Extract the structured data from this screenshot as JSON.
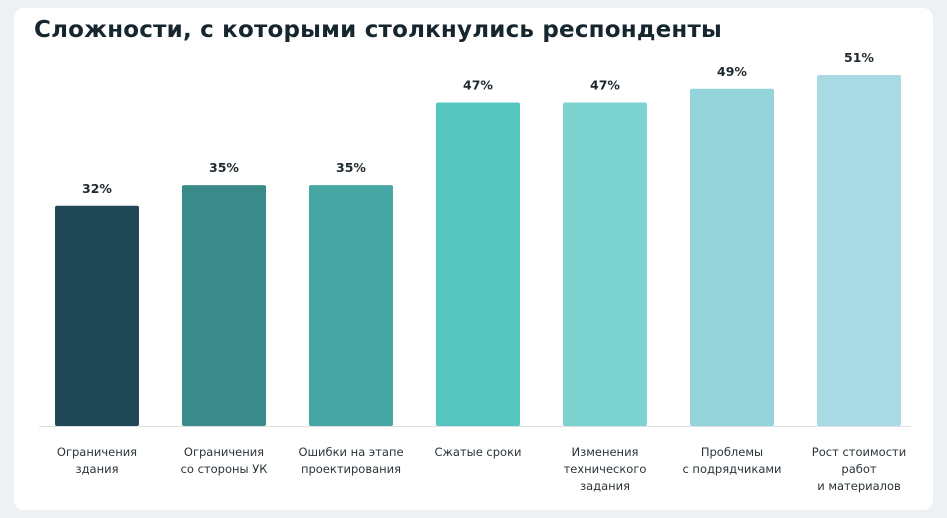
{
  "title": "Сложности, с которыми столкнулись респонденты",
  "chart_data": {
    "type": "bar",
    "title": "Сложности, с которыми столкнулись респонденты",
    "categories": [
      [
        "Ограничения",
        "здания"
      ],
      [
        "Ограничения",
        "со стороны УК"
      ],
      [
        "Ошибки на этапе",
        "проектирования"
      ],
      [
        "Сжатые сроки"
      ],
      [
        "Изменения",
        "технического",
        "задания"
      ],
      [
        "Проблемы",
        "с подрядчиками"
      ],
      [
        "Рост стоимости",
        "работ",
        "и материалов"
      ]
    ],
    "values": [
      32,
      35,
      35,
      47,
      47,
      49,
      51
    ],
    "value_labels": [
      "32%",
      "35%",
      "35%",
      "47%",
      "47%",
      "49%",
      "51%"
    ],
    "ylim": [
      0,
      51
    ],
    "grid": false,
    "colors": [
      "#1f4755",
      "#3a8a89",
      "#46a6a3",
      "#55c6c0",
      "#7dd3d0",
      "#95d4da",
      "#a9d9e2"
    ],
    "baseline_color": "#d9dfe2"
  }
}
